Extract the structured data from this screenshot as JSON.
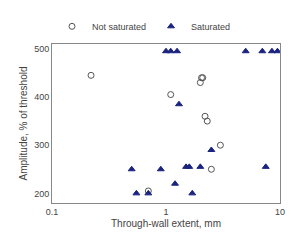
{
  "chart_data": {
    "type": "scatter",
    "x_label": "Through-wall extent, mm",
    "y_label": "Amplitude, % of threshold",
    "series": [
      {
        "name": "Not saturated",
        "color": "#555555",
        "marker": "circle-open",
        "x": [
          0.22,
          0.7,
          1.1,
          2.0,
          2.05,
          2.1,
          2.2,
          2.3,
          2.5,
          3.0
        ],
        "values": [
          445,
          205,
          405,
          430,
          440,
          440,
          360,
          350,
          250,
          300
        ]
      },
      {
        "name": "Saturated",
        "color": "#1a237e",
        "marker": "triangle-up",
        "x": [
          0.5,
          0.55,
          0.7,
          0.9,
          1.0,
          1.1,
          1.2,
          1.25,
          1.3,
          1.5,
          1.6,
          1.7,
          2.0,
          2.5,
          5.0,
          7.0,
          7.5,
          8.5,
          9.5
        ],
        "values": [
          250,
          200,
          200,
          250,
          495,
          495,
          220,
          495,
          385,
          255,
          255,
          200,
          255,
          290,
          495,
          495,
          255,
          495,
          495
        ]
      }
    ],
    "log": "x",
    "xlim": [
      0.1,
      10.0
    ],
    "xticks": [
      0.1,
      1,
      10
    ],
    "ylim": [
      180,
      510
    ],
    "yticks": [
      200,
      300,
      400,
      500
    ],
    "grid": false,
    "legend": "top"
  }
}
